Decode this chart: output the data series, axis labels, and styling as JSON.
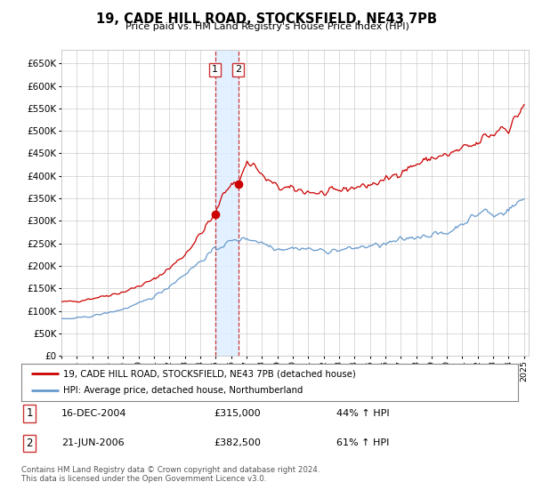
{
  "title": "19, CADE HILL ROAD, STOCKSFIELD, NE43 7PB",
  "subtitle": "Price paid vs. HM Land Registry's House Price Index (HPI)",
  "red_color": "#cc0000",
  "blue_color": "#6699cc",
  "vline_color": "#cc3333",
  "shade_color": "#ddeeff",
  "sale1_x": 2004.96,
  "sale1_price": 315000,
  "sale2_x": 2006.47,
  "sale2_price": 382500,
  "ylim": [
    0,
    680000
  ],
  "ytick_values": [
    0,
    50000,
    100000,
    150000,
    200000,
    250000,
    300000,
    350000,
    400000,
    450000,
    500000,
    550000,
    600000,
    650000
  ],
  "xlim_left": 1995.0,
  "xlim_right": 2025.3,
  "legend_red": "19, CADE HILL ROAD, STOCKSFIELD, NE43 7PB (detached house)",
  "legend_blue": "HPI: Average price, detached house, Northumberland",
  "transaction1_date": "16-DEC-2004",
  "transaction1_price": "£315,000",
  "transaction1_hpi": "44% ↑ HPI",
  "transaction2_date": "21-JUN-2006",
  "transaction2_price": "£382,500",
  "transaction2_hpi": "61% ↑ HPI",
  "footer": "Contains HM Land Registry data © Crown copyright and database right 2024.\nThis data is licensed under the Open Government Licence v3.0.",
  "xtick_years": [
    1995,
    1996,
    1997,
    1998,
    1999,
    2000,
    2001,
    2002,
    2003,
    2004,
    2005,
    2006,
    2007,
    2008,
    2009,
    2010,
    2011,
    2012,
    2013,
    2014,
    2015,
    2016,
    2017,
    2018,
    2019,
    2020,
    2021,
    2022,
    2023,
    2024,
    2025
  ]
}
